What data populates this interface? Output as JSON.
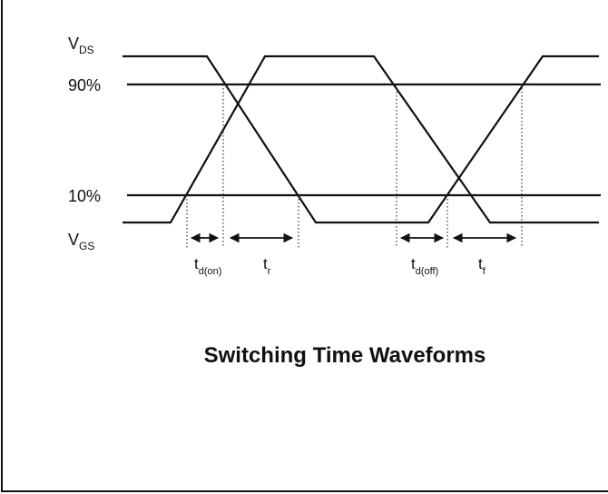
{
  "labels": {
    "vds": {
      "main": "V",
      "sub": "DS"
    },
    "p90": "90%",
    "p10": "10%",
    "vgs": {
      "main": "V",
      "sub": "GS"
    },
    "td_on": {
      "main": "t",
      "sub": "d(on)"
    },
    "tr": {
      "main": "t",
      "sub": "r"
    },
    "td_off": {
      "main": "t",
      "sub": "d(off)"
    },
    "tf": {
      "main": "t",
      "sub": "f"
    }
  },
  "title": "Switching Time Waveforms"
}
